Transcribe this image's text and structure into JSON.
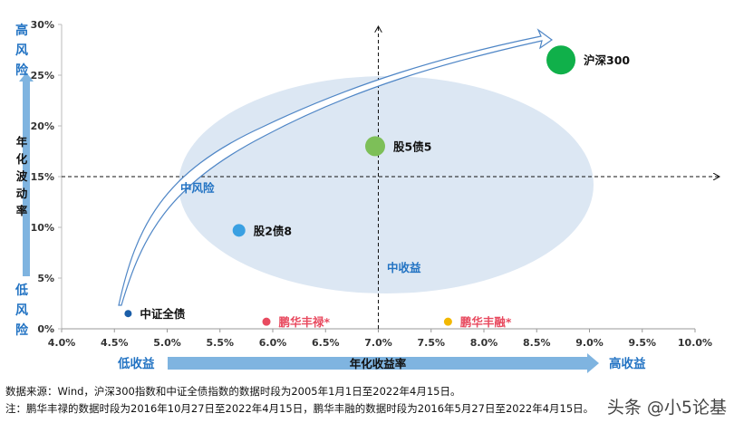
{
  "chart_data": {
    "type": "scatter",
    "x_ticks": [
      "4.0%",
      "4.5%",
      "5.0%",
      "5.5%",
      "6.0%",
      "6.5%",
      "7.0%",
      "7.5%",
      "8.0%",
      "8.5%",
      "9.0%",
      "9.5%",
      "10.0%"
    ],
    "y_ticks": [
      "0%",
      "5%",
      "10%",
      "15%",
      "20%",
      "25%",
      "30%"
    ],
    "xlim": [
      4.0,
      10.0
    ],
    "ylim": [
      0,
      30
    ],
    "points": [
      {
        "label": "沪深300",
        "x": 8.73,
        "y": 26.5,
        "color": "#10b04a",
        "size": 16,
        "label_color": "#111111"
      },
      {
        "label": "股5债5",
        "x": 6.97,
        "y": 18.0,
        "color": "#7dbf58",
        "size": 11,
        "label_color": "#111111"
      },
      {
        "label": "股2债8",
        "x": 5.68,
        "y": 9.7,
        "color": "#3aa0e2",
        "size": 7,
        "label_color": "#111111"
      },
      {
        "label": "中证全债",
        "x": 4.63,
        "y": 1.5,
        "color": "#1b5ea8",
        "size": 4,
        "label_color": "#111111"
      },
      {
        "label": "鹏华丰禄*",
        "x": 5.94,
        "y": 0.7,
        "color": "#e84a5f",
        "size": 4.5,
        "label_color": "#e84a5f"
      },
      {
        "label": "鹏华丰融*",
        "x": 7.66,
        "y": 0.7,
        "color": "#f2b800",
        "size": 4.5,
        "label_color": "#e84a5f"
      }
    ],
    "reference_lines": {
      "x": 7.0,
      "y": 15.0
    },
    "region_labels": {
      "mid_risk": "中风险",
      "mid_return": "中收益"
    },
    "y_axis": {
      "high": "高风险",
      "title": "年化波动率",
      "low": "低风险"
    },
    "x_axis": {
      "low": "低收益",
      "title": "年化收益率",
      "high": "高收益"
    }
  },
  "notes": [
    "数据来源：Wind，沪深300指数和中证全债指数的数据时段为2005年1月1日至2022年4月15日。",
    "注：鹏华丰禄的数据时段为2016年10月27日至2022年4月15日，鹏华丰融的数据时段为2016年5月27日至2022年4月15日。"
  ],
  "watermark": "头条 @小5论基",
  "colors": {
    "axis_arrow": "#7fb4e0",
    "ellipse": "#dce7f3",
    "region_text": "#2273c3",
    "axis_text": "#2273c3"
  }
}
